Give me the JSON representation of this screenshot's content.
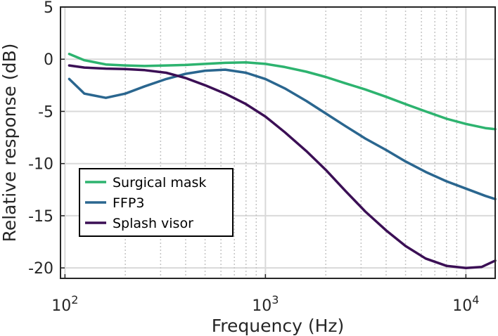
{
  "chart_data": {
    "type": "line",
    "title": "",
    "xlabel": "Frequency (Hz)",
    "ylabel": "Relative response (dB)",
    "xscale": "log",
    "xlim": [
      95,
      14000
    ],
    "ylim": [
      -21,
      5
    ],
    "grid": true,
    "legend_position": "lower-left",
    "x_ticks": [
      {
        "value": 100,
        "base": "10",
        "exp": "2"
      },
      {
        "value": 1000,
        "base": "10",
        "exp": "3"
      },
      {
        "value": 10000,
        "base": "10",
        "exp": "4"
      }
    ],
    "y_ticks": [
      {
        "value": 5,
        "label": "5"
      },
      {
        "value": 0,
        "label": "0"
      },
      {
        "value": -5,
        "label": "-5"
      },
      {
        "value": -10,
        "label": "-10"
      },
      {
        "value": -15,
        "label": "-15"
      },
      {
        "value": -20,
        "label": "-20"
      }
    ],
    "series": [
      {
        "name": "Surgical mask",
        "color": "#2db36f",
        "x": [
          105,
          125,
          160,
          200,
          250,
          320,
          400,
          500,
          630,
          800,
          1000,
          1250,
          1600,
          2000,
          2500,
          3150,
          4000,
          5000,
          6300,
          8000,
          10000,
          12500,
          14000
        ],
        "y": [
          0.5,
          -0.1,
          -0.5,
          -0.6,
          -0.65,
          -0.6,
          -0.55,
          -0.45,
          -0.35,
          -0.3,
          -0.45,
          -0.75,
          -1.2,
          -1.7,
          -2.3,
          -2.9,
          -3.6,
          -4.3,
          -5.0,
          -5.7,
          -6.2,
          -6.6,
          -6.7
        ]
      },
      {
        "name": "FFP3",
        "color": "#2a668f",
        "x": [
          105,
          125,
          160,
          200,
          250,
          320,
          400,
          500,
          630,
          800,
          1000,
          1250,
          1600,
          2000,
          2500,
          3150,
          4000,
          5000,
          6300,
          8000,
          10000,
          12500,
          14000
        ],
        "y": [
          -1.9,
          -3.3,
          -3.7,
          -3.3,
          -2.6,
          -1.9,
          -1.4,
          -1.1,
          -1.0,
          -1.3,
          -1.9,
          -2.8,
          -4.0,
          -5.2,
          -6.4,
          -7.6,
          -8.7,
          -9.8,
          -10.8,
          -11.7,
          -12.4,
          -13.1,
          -13.4
        ]
      },
      {
        "name": "Splash visor",
        "color": "#3b0f55",
        "x": [
          105,
          125,
          160,
          200,
          250,
          320,
          400,
          500,
          630,
          800,
          1000,
          1250,
          1600,
          2000,
          2500,
          3150,
          4000,
          5000,
          6300,
          8000,
          10000,
          12000,
          14000
        ],
        "y": [
          -0.6,
          -0.8,
          -0.9,
          -0.95,
          -1.05,
          -1.3,
          -1.8,
          -2.5,
          -3.3,
          -4.3,
          -5.5,
          -7.0,
          -8.8,
          -10.6,
          -12.6,
          -14.6,
          -16.4,
          -17.9,
          -19.1,
          -19.8,
          -20.0,
          -19.9,
          -19.3
        ]
      }
    ]
  }
}
